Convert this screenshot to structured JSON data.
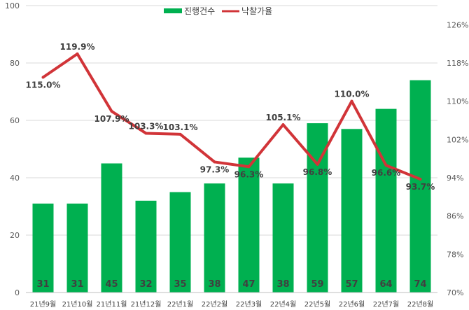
{
  "chart_data": {
    "type": "bar+line",
    "categories": [
      "21년9월",
      "21년10월",
      "21년11월",
      "21년12월",
      "22년1월",
      "22년2월",
      "22년3월",
      "22년4월",
      "22년5월",
      "22년6월",
      "22년7월",
      "22년8월"
    ],
    "series": [
      {
        "name": "진행건수",
        "type": "bar",
        "axis": "left",
        "values": [
          31,
          31,
          45,
          32,
          35,
          38,
          47,
          38,
          59,
          57,
          64,
          74
        ],
        "labels": [
          "31",
          "31",
          "45",
          "32",
          "35",
          "38",
          "47",
          "38",
          "59",
          "57",
          "64",
          "74"
        ]
      },
      {
        "name": "낙찰가율",
        "type": "line",
        "axis": "right",
        "values": [
          115.0,
          119.9,
          107.9,
          103.3,
          103.1,
          97.3,
          96.3,
          105.1,
          96.8,
          110.0,
          96.6,
          93.7
        ],
        "labels": [
          "115.0%",
          "119.9%",
          "107.9%",
          "103.3%",
          "103.1%",
          "97.3%",
          "96.3%",
          "105.1%",
          "96.8%",
          "110.0%",
          "96.6%",
          "93.7%"
        ]
      }
    ],
    "y_left": {
      "range": [
        0,
        100
      ],
      "ticks": [
        "0",
        "20",
        "40",
        "60",
        "80",
        "100"
      ],
      "tick_values": [
        0,
        20,
        40,
        60,
        80,
        100
      ]
    },
    "y_right": {
      "range": [
        70,
        130
      ],
      "ticks": [
        "70%",
        "78%",
        "86%",
        "94%",
        "102%",
        "110%",
        "118%",
        "126%"
      ],
      "tick_values": [
        70,
        78,
        86,
        94,
        102,
        110,
        118,
        126
      ]
    },
    "legend": {
      "placement": "top-center",
      "items": [
        "진행건수",
        "낙찰가율"
      ]
    },
    "colors": {
      "bar": "#00B050",
      "line": "#D13438",
      "grid": "#D9D9D9"
    },
    "grid": true
  }
}
